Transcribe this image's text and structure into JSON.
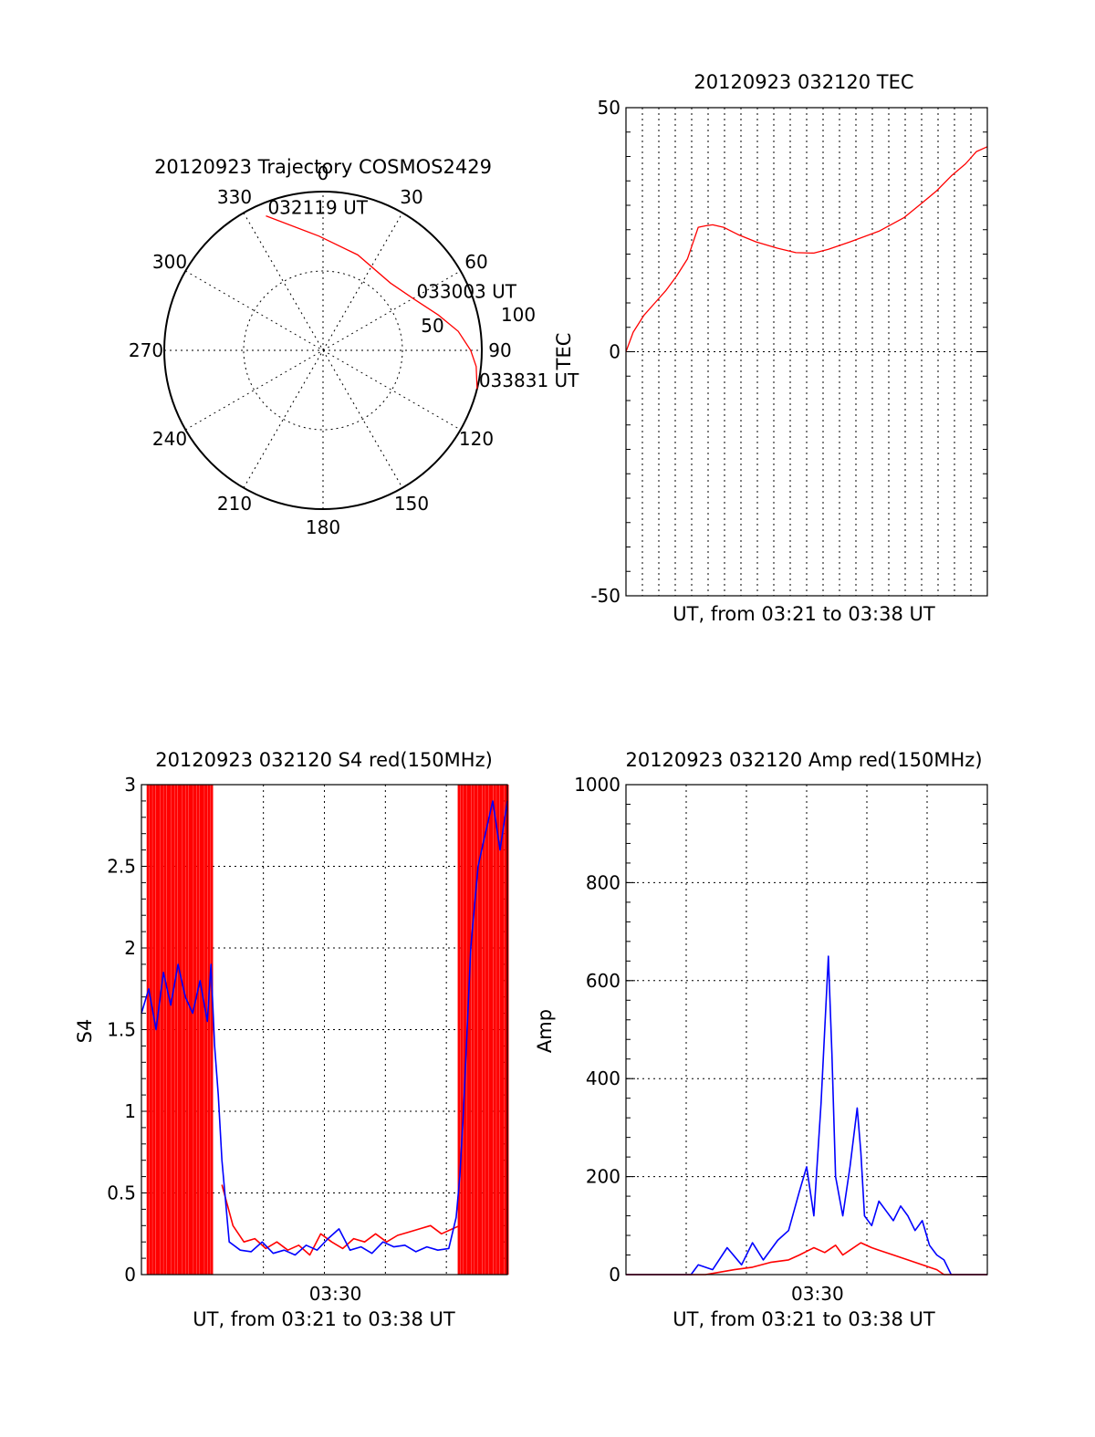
{
  "chart_data": [
    {
      "type": "polar",
      "title": "20120923 Trajectory COSMOS2429",
      "azimuth_labels": [
        "0",
        "30",
        "60",
        "90",
        "120",
        "150",
        "180",
        "210",
        "240",
        "270",
        "300",
        "330"
      ],
      "radial_labels": [
        "50",
        "100"
      ],
      "rlim": [
        0,
        100
      ],
      "grid": true,
      "series": [
        {
          "color": "#ff0000",
          "points": [
            {
              "az": 337,
              "zen": 92
            },
            {
              "az": 358,
              "zen": 72
            },
            {
              "az": 20,
              "zen": 64
            },
            {
              "az": 45,
              "zen": 60
            },
            {
              "az": 61,
              "zen": 66
            },
            {
              "az": 73,
              "zen": 76
            },
            {
              "az": 82,
              "zen": 86
            },
            {
              "az": 90,
              "zen": 93
            },
            {
              "az": 96,
              "zen": 97
            },
            {
              "az": 104,
              "zen": 100
            }
          ]
        }
      ],
      "annotations": [
        {
          "text": "032119 UT",
          "az": 337,
          "zen": 92
        },
        {
          "text": "033003 UT",
          "az": 61,
          "zen": 66
        },
        {
          "text": "033831 UT",
          "az": 104,
          "zen": 100
        }
      ]
    },
    {
      "type": "line",
      "title": "20120923 032120 TEC",
      "xlabel": "UT, from 03:21 to 03:38 UT",
      "ylabel": "TEC",
      "xlim": [
        0,
        1
      ],
      "ylim": [
        -50,
        50
      ],
      "yticks": [
        "-50",
        "0",
        "50"
      ],
      "grid": true,
      "series": [
        {
          "color": "#ff0000",
          "x": [
            0,
            0.02,
            0.05,
            0.08,
            0.11,
            0.14,
            0.17,
            0.2,
            0.22,
            0.24,
            0.27,
            0.31,
            0.36,
            0.42,
            0.47,
            0.52,
            0.56,
            0.62,
            0.7,
            0.77,
            0.82,
            0.86,
            0.9,
            0.94,
            0.97,
            1.0
          ],
          "y": [
            0,
            4,
            7.5,
            10,
            12.5,
            15.5,
            19,
            25.5,
            25.8,
            26,
            25.5,
            24,
            22.5,
            21.2,
            20.3,
            20.2,
            21,
            22.5,
            24.7,
            27.5,
            30.5,
            33,
            36,
            38.5,
            41,
            42
          ]
        }
      ]
    },
    {
      "type": "line",
      "title": "20120923 032120 S4 red(150MHz)",
      "xlabel": "UT, from 03:21 to 03:38 UT",
      "ylabel": "S4",
      "xlim": [
        0,
        1
      ],
      "ylim": [
        0,
        3
      ],
      "yticks": [
        "0",
        "0.5",
        "1",
        "1.5",
        "2",
        "2.5",
        "3"
      ],
      "xticks": [
        {
          "x": 0.53,
          "label": "03:30"
        }
      ],
      "grid": true,
      "series": [
        {
          "color": "#ff0000",
          "x": [
            0.22,
            0.25,
            0.28,
            0.31,
            0.34,
            0.37,
            0.4,
            0.43,
            0.46,
            0.49,
            0.52,
            0.55,
            0.58,
            0.61,
            0.64,
            0.67,
            0.7,
            0.73,
            0.76,
            0.79,
            0.82,
            0.85,
            0.87
          ],
          "y": [
            0.55,
            0.3,
            0.2,
            0.22,
            0.16,
            0.2,
            0.15,
            0.18,
            0.12,
            0.25,
            0.2,
            0.16,
            0.22,
            0.2,
            0.25,
            0.2,
            0.24,
            0.26,
            0.28,
            0.3,
            0.25,
            0.28,
            0.3
          ]
        },
        {
          "color": "#0000ff",
          "x": [
            0.0,
            0.02,
            0.04,
            0.06,
            0.08,
            0.1,
            0.12,
            0.14,
            0.16,
            0.18,
            0.19,
            0.2,
            0.21,
            0.22,
            0.24,
            0.27,
            0.3,
            0.33,
            0.36,
            0.39,
            0.42,
            0.45,
            0.48,
            0.51,
            0.54,
            0.57,
            0.6,
            0.63,
            0.66,
            0.69,
            0.72,
            0.75,
            0.78,
            0.81,
            0.84,
            0.86,
            0.87,
            0.88,
            0.89,
            0.9,
            0.92,
            0.94,
            0.96,
            0.98,
            1.0
          ],
          "y": [
            1.6,
            1.75,
            1.5,
            1.85,
            1.65,
            1.9,
            1.7,
            1.6,
            1.8,
            1.55,
            1.9,
            1.4,
            1.1,
            0.7,
            0.2,
            0.15,
            0.14,
            0.2,
            0.13,
            0.15,
            0.12,
            0.18,
            0.15,
            0.22,
            0.28,
            0.15,
            0.17,
            0.13,
            0.2,
            0.17,
            0.18,
            0.14,
            0.17,
            0.15,
            0.16,
            0.35,
            0.6,
            1.0,
            1.5,
            2.0,
            2.5,
            2.7,
            2.9,
            2.6,
            2.9
          ]
        }
      ],
      "saturated_red_bursts": [
        0.03,
        0.06,
        0.09,
        0.12,
        0.15,
        0.18,
        0.88,
        0.91,
        0.94,
        0.97,
        1.0
      ]
    },
    {
      "type": "line",
      "title": "20120923 032120 Amp red(150MHz)",
      "xlabel": "UT, from 03:21 to 03:38 UT",
      "ylabel": "Amp",
      "xlim": [
        0,
        1
      ],
      "ylim": [
        0,
        1000
      ],
      "yticks": [
        "0",
        "200",
        "400",
        "600",
        "800",
        "1000"
      ],
      "xticks": [
        {
          "x": 0.53,
          "label": "03:30"
        }
      ],
      "grid": true,
      "series": [
        {
          "color": "#0000ff",
          "x": [
            0.0,
            0.18,
            0.2,
            0.24,
            0.28,
            0.32,
            0.35,
            0.38,
            0.42,
            0.45,
            0.48,
            0.5,
            0.52,
            0.54,
            0.56,
            0.57,
            0.58,
            0.6,
            0.62,
            0.64,
            0.65,
            0.66,
            0.68,
            0.7,
            0.72,
            0.74,
            0.76,
            0.78,
            0.8,
            0.82,
            0.84,
            0.86,
            0.88,
            0.9,
            1.0
          ],
          "y": [
            0,
            0,
            20,
            10,
            55,
            20,
            65,
            30,
            70,
            90,
            170,
            220,
            120,
            350,
            650,
            450,
            200,
            120,
            220,
            340,
            250,
            120,
            100,
            150,
            130,
            110,
            140,
            120,
            90,
            110,
            60,
            40,
            30,
            0,
            0
          ]
        },
        {
          "color": "#ff0000",
          "x": [
            0.0,
            0.22,
            0.26,
            0.3,
            0.35,
            0.4,
            0.45,
            0.48,
            0.52,
            0.55,
            0.58,
            0.6,
            0.62,
            0.65,
            0.68,
            0.7,
            0.74,
            0.78,
            0.82,
            0.86,
            0.88,
            1.0
          ],
          "y": [
            0,
            0,
            5,
            10,
            15,
            25,
            30,
            40,
            55,
            45,
            60,
            40,
            50,
            65,
            55,
            50,
            40,
            30,
            20,
            10,
            0,
            0
          ]
        }
      ]
    }
  ]
}
